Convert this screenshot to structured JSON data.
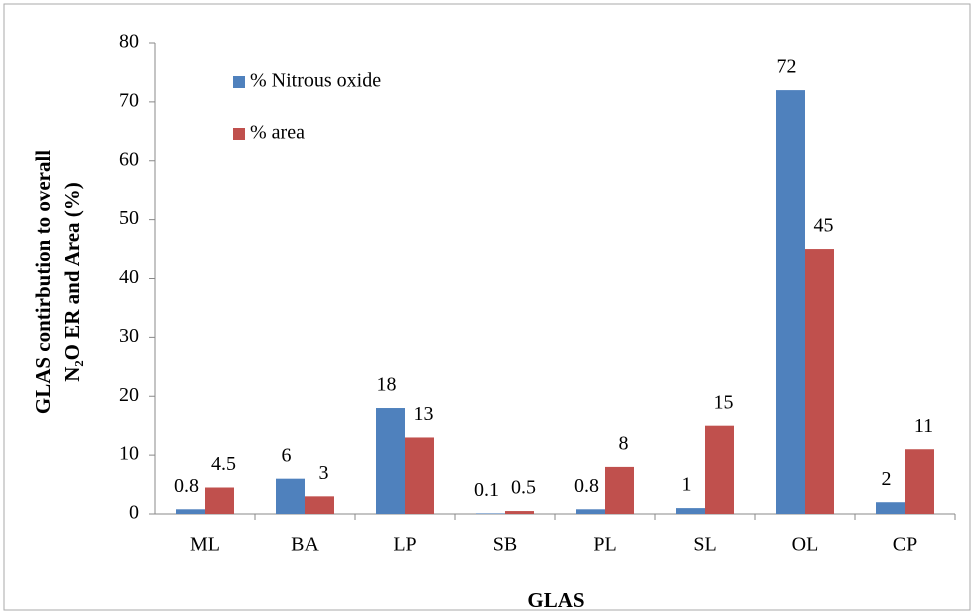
{
  "chart_data": {
    "type": "bar",
    "x_label": "GLAS",
    "y_label": [
      "GLAS contirbution to overall",
      "N₂O ER and Area (%)"
    ],
    "categories": [
      "ML",
      "BA",
      "LP",
      "SB",
      "PL",
      "SL",
      "OL",
      "CP"
    ],
    "series": [
      {
        "name": "% Nitrous oxide",
        "color": "#4f81bd",
        "values": [
          0.8,
          6,
          18,
          0.1,
          0.8,
          1,
          72,
          2
        ]
      },
      {
        "name": "% area",
        "color": "#c0504d",
        "values": [
          4.5,
          3,
          13,
          0.5,
          8,
          15,
          45,
          11
        ]
      }
    ],
    "ylim": [
      0,
      80
    ],
    "yticks": [
      0,
      10,
      20,
      30,
      40,
      50,
      60,
      70,
      80
    ],
    "grid": false,
    "legend": "upper left"
  }
}
